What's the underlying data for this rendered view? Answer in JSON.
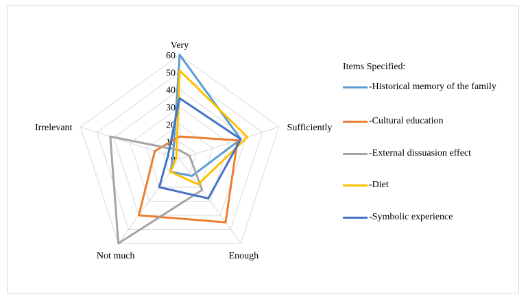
{
  "chart_data": {
    "type": "radar",
    "axes": [
      "Very",
      "Sufficiently",
      "Enough",
      "Not much",
      "Irrelevant"
    ],
    "rlim": [
      0,
      60
    ],
    "ticks": [
      0,
      10,
      20,
      30,
      40,
      50,
      60
    ],
    "grid": true,
    "legend_title": "Items Specified:",
    "legend_position": "right",
    "series": [
      {
        "name": "-Historical memory of the family",
        "color": "#5B9BD5",
        "values": [
          60,
          37,
          12,
          9,
          4
        ]
      },
      {
        "name": "-Cultural education",
        "color": "#ED7D31",
        "values": [
          13,
          35,
          45,
          40,
          15
        ]
      },
      {
        "name": "-External dissuasion effect",
        "color": "#A5A5A5",
        "values": [
          5,
          6,
          22,
          60,
          42
        ]
      },
      {
        "name": "-Diet",
        "color": "#FFC000",
        "values": [
          51,
          41,
          18,
          9,
          2
        ]
      },
      {
        "name": "-Symbolic experience",
        "color": "#4472C4",
        "values": [
          35,
          37,
          28,
          20,
          7
        ]
      }
    ]
  }
}
